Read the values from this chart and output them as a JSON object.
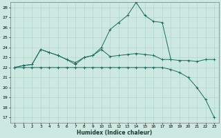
{
  "xlabel": "Humidex (Indice chaleur)",
  "xlim": [
    -0.5,
    23.5
  ],
  "ylim": [
    16.5,
    28.5
  ],
  "xticks": [
    0,
    1,
    2,
    3,
    4,
    5,
    6,
    7,
    8,
    9,
    10,
    11,
    12,
    13,
    14,
    15,
    16,
    17,
    18,
    19,
    20,
    21,
    22,
    23
  ],
  "yticks": [
    17,
    18,
    19,
    20,
    21,
    22,
    23,
    24,
    25,
    26,
    27,
    28
  ],
  "bg_color": "#cce8e0",
  "line_color": "#1a6b60",
  "grid_color": "#aad4c8",
  "series": [
    {
      "x": [
        0,
        1,
        2,
        3,
        4,
        5,
        6,
        7,
        8,
        9,
        10,
        11,
        12,
        13,
        14,
        15,
        16,
        17,
        18,
        19,
        20,
        21,
        22
      ],
      "y": [
        22.0,
        22.2,
        22.3,
        23.8,
        23.5,
        23.2,
        22.8,
        22.5,
        23.0,
        23.2,
        24.0,
        25.8,
        26.5,
        27.2,
        28.5,
        27.2,
        26.6,
        26.5,
        22.8,
        null,
        null,
        null,
        null
      ],
      "marker": true
    },
    {
      "x": [
        0,
        1,
        2,
        3,
        4,
        5,
        6,
        7,
        8,
        9,
        10,
        11,
        12,
        13,
        14,
        15,
        16,
        17,
        18,
        19,
        20,
        21,
        22,
        23
      ],
      "y": [
        22.0,
        22.2,
        22.3,
        23.8,
        23.5,
        23.2,
        22.8,
        22.3,
        23.0,
        23.2,
        23.8,
        23.1,
        23.2,
        23.3,
        23.4,
        23.3,
        23.2,
        22.8,
        22.8,
        22.7,
        22.7,
        22.6,
        22.8,
        22.8
      ],
      "marker": true
    },
    {
      "x": [
        0,
        1,
        2,
        3,
        4,
        5,
        6,
        7,
        8,
        9,
        10,
        11,
        12,
        13,
        14,
        15,
        16,
        17,
        18,
        19,
        20,
        21,
        22,
        23
      ],
      "y": [
        22.0,
        22.0,
        22.0,
        22.0,
        22.0,
        22.0,
        22.0,
        22.0,
        22.0,
        22.0,
        22.0,
        22.0,
        22.0,
        22.0,
        22.0,
        22.0,
        22.0,
        22.0,
        21.8,
        21.5,
        21.0,
        20.0,
        18.8,
        17.0
      ],
      "marker": true
    }
  ]
}
